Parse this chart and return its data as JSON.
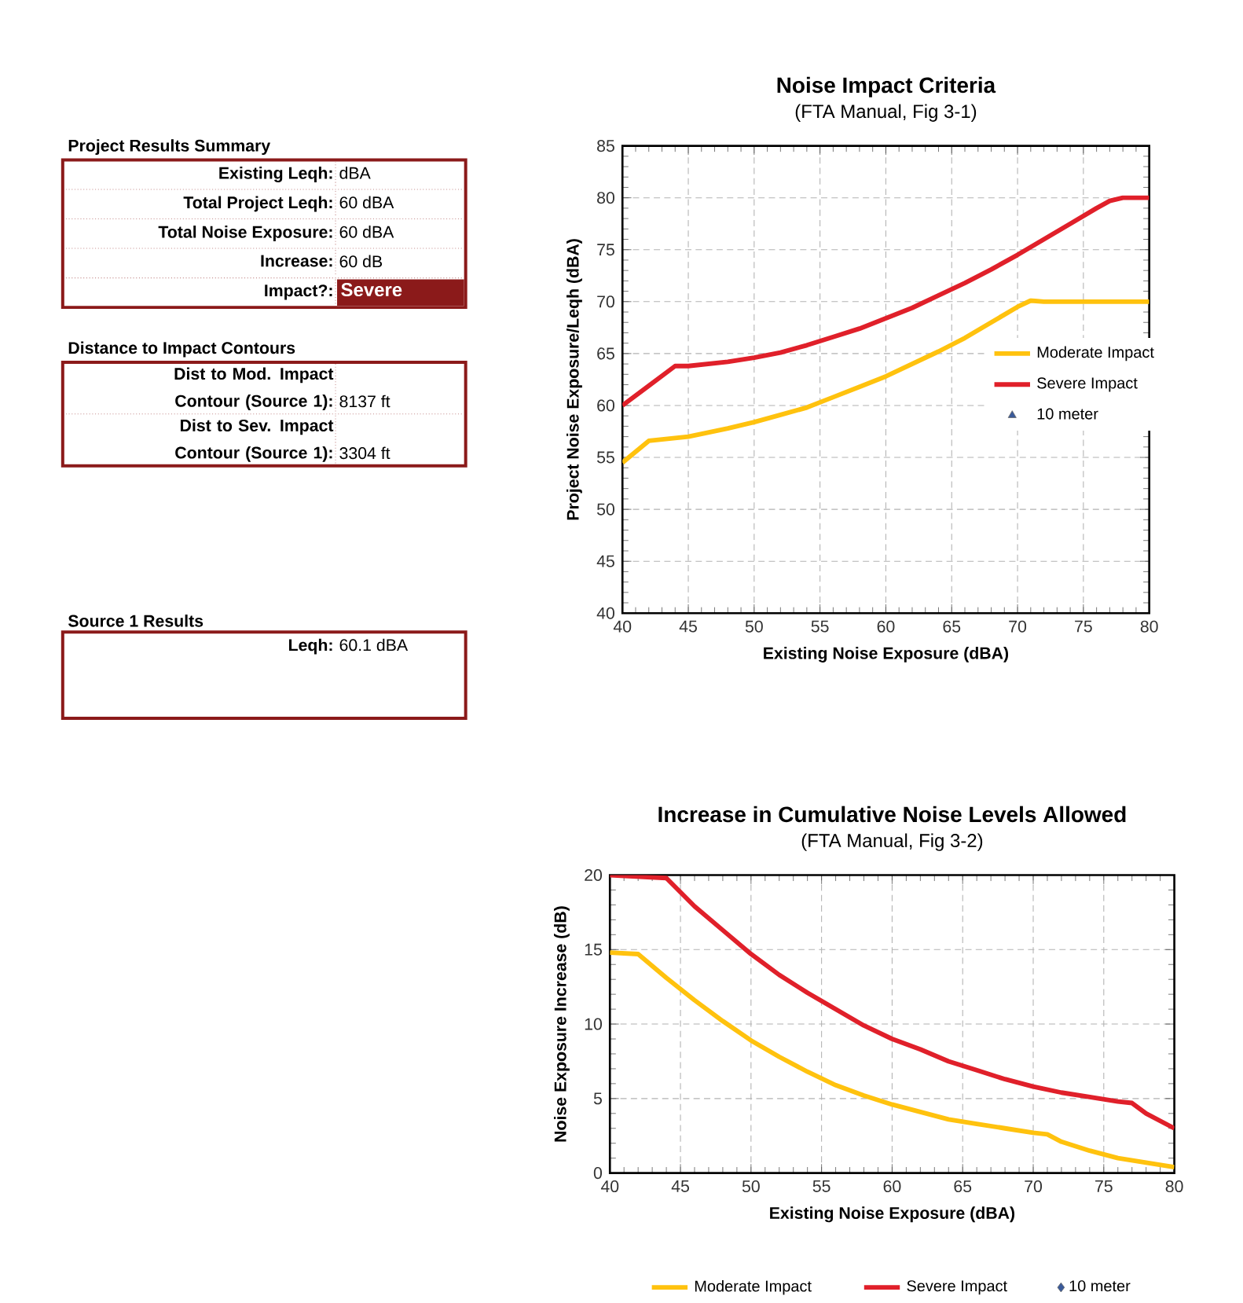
{
  "chart_data": [
    {
      "type": "other",
      "title": "Project Results Summary",
      "annotations": [
        "Existing Leqh:",
        "dBA",
        "Total Project Leqh:",
        "60 dBA",
        "Total Noise Exposure:",
        "60 dBA",
        "Increase:",
        "60 dB",
        "Impact?:",
        "Severe"
      ]
    },
    {
      "type": "other",
      "title": "Distance to Impact Contours",
      "annotations": [
        "Dist to Mod. Impact Contour (Source 1):",
        "8137 ft",
        "Dist to Sev. Impact Contour (Source 1):",
        "3304 ft"
      ]
    },
    {
      "type": "other",
      "title": "Source 1  Results",
      "annotations": [
        "Leqh:",
        "60.1 dBA"
      ]
    },
    {
      "type": "line",
      "title": "Noise Impact Criteria",
      "subtitle": "(FTA Manual,  Fig 3-1)",
      "xlabel": "Existing Noise Exposure (dBA)",
      "ylabel": "Project Noise Exposure/Leqh (dBA)",
      "xlim": [
        40,
        80
      ],
      "ylim": [
        40,
        85
      ],
      "xticks": [
        40,
        45,
        50,
        55,
        60,
        65,
        70,
        75,
        80
      ],
      "yticks": [
        40,
        45,
        50,
        55,
        60,
        65,
        70,
        75,
        80,
        85
      ],
      "grid": true,
      "legend": "right",
      "series": [
        {
          "name": "Moderate Impact",
          "color": "#ffc20e",
          "x": [
            40,
            42,
            45,
            48,
            50,
            52,
            54,
            56,
            58,
            60,
            62,
            64,
            66,
            68,
            70,
            71,
            72,
            80
          ],
          "values": [
            54.5,
            56.6,
            57,
            57.8,
            58.4,
            59.1,
            59.8,
            60.8,
            61.8,
            62.8,
            64,
            65.2,
            66.5,
            68,
            69.5,
            70.1,
            70,
            70
          ]
        },
        {
          "name": "Severe Impact",
          "color": "#e0202a",
          "x": [
            40,
            42,
            44,
            45,
            48,
            50,
            52,
            54,
            56,
            58,
            60,
            62,
            64,
            66,
            68,
            70,
            72,
            74,
            76,
            77,
            78,
            80
          ],
          "values": [
            60,
            61.9,
            63.8,
            63.8,
            64.2,
            64.6,
            65.1,
            65.8,
            66.6,
            67.4,
            68.4,
            69.4,
            70.6,
            71.8,
            73.1,
            74.5,
            76,
            77.5,
            79,
            79.7,
            80,
            80
          ]
        },
        {
          "name": "10 meter",
          "type": "scatter",
          "marker": "triangle",
          "color": "#3a5a9a"
        }
      ]
    },
    {
      "type": "line",
      "title": "Increase in Cumulative Noise Levels Allowed",
      "subtitle": "(FTA Manual,  Fig 3-2)",
      "xlabel": "Existing Noise Exposure (dBA)",
      "ylabel": "Noise Exposure Increase (dB)",
      "xlim": [
        40,
        80
      ],
      "ylim": [
        0,
        20
      ],
      "xticks": [
        40,
        45,
        50,
        55,
        60,
        65,
        70,
        75,
        80
      ],
      "yticks": [
        0,
        5,
        10,
        15,
        20
      ],
      "grid": true,
      "legend": "bottom",
      "series": [
        {
          "name": "Moderate Impact",
          "color": "#ffc20e",
          "x": [
            40,
            42,
            44,
            46,
            48,
            50,
            52,
            54,
            56,
            58,
            60,
            62,
            64,
            66,
            68,
            70,
            71,
            72,
            74,
            76,
            78,
            80
          ],
          "values": [
            14.8,
            14.7,
            13.1,
            11.6,
            10.2,
            8.9,
            7.8,
            6.8,
            5.9,
            5.2,
            4.6,
            4.1,
            3.6,
            3.3,
            3.0,
            2.7,
            2.6,
            2.1,
            1.5,
            1.0,
            0.7,
            0.4
          ]
        },
        {
          "name": "Severe Impact",
          "color": "#e0202a",
          "x": [
            40,
            42,
            44,
            46,
            48,
            50,
            52,
            54,
            56,
            58,
            60,
            62,
            64,
            66,
            68,
            70,
            72,
            74,
            76,
            77,
            78,
            80
          ],
          "values": [
            20,
            19.9,
            19.8,
            17.9,
            16.3,
            14.7,
            13.3,
            12.1,
            11.0,
            9.9,
            9.0,
            8.3,
            7.5,
            6.9,
            6.3,
            5.8,
            5.4,
            5.1,
            4.8,
            4.7,
            4.0,
            3.0
          ]
        },
        {
          "name": "10 meter",
          "type": "scatter",
          "marker": "diamond",
          "color": "#3a5a9a"
        }
      ]
    }
  ]
}
